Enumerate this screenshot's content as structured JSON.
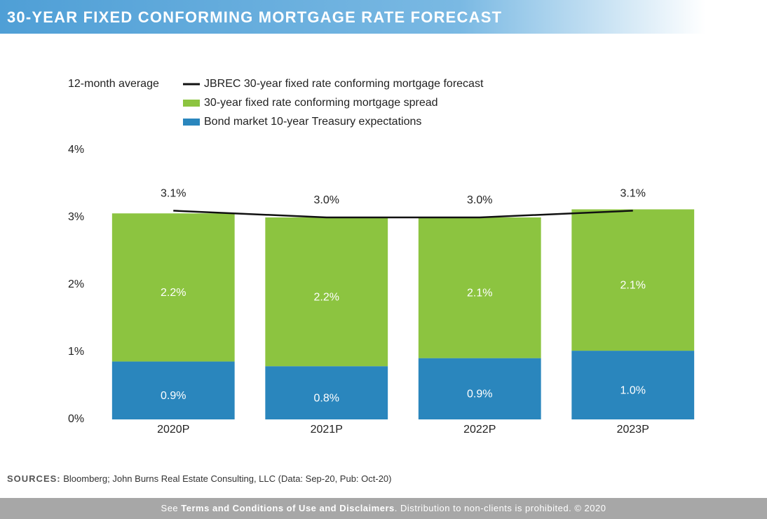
{
  "header": {
    "title": "30-YEAR FIXED CONFORMING MORTGAGE RATE FORECAST"
  },
  "chart_data": {
    "type": "bar",
    "stacked": true,
    "legend_reversed": true,
    "grid": false,
    "legend_title": "12-month average",
    "categories": [
      "2020P",
      "2021P",
      "2022P",
      "2023P"
    ],
    "ylim": [
      0,
      4
    ],
    "yticks": [
      {
        "value": 0,
        "label": "0%"
      },
      {
        "value": 1,
        "label": "1%"
      },
      {
        "value": 2,
        "label": "2%"
      },
      {
        "value": 3,
        "label": "3%"
      },
      {
        "value": 4,
        "label": "4%"
      }
    ],
    "series": [
      {
        "name": "Bond market 10-year Treasury expectations",
        "type": "bar",
        "color": "#2a86bd",
        "values": [
          0.86,
          0.79,
          0.91,
          1.02
        ],
        "value_labels": [
          "0.9%",
          "0.8%",
          "0.9%",
          "1.0%"
        ]
      },
      {
        "name": "30-year fixed rate conforming mortgage spread",
        "type": "bar",
        "color": "#8cc440",
        "values": [
          2.2,
          2.21,
          2.09,
          2.1
        ],
        "value_labels": [
          "2.2%",
          "2.2%",
          "2.1%",
          "2.1%"
        ]
      },
      {
        "name": "JBREC 30-year fixed rate conforming mortgage forecast",
        "type": "line",
        "color": "#111111",
        "values": [
          3.1,
          3.0,
          3.0,
          3.1
        ],
        "value_labels": [
          "3.1%",
          "3.0%",
          "3.0%",
          "3.1%"
        ]
      }
    ]
  },
  "sources": {
    "label": "SOURCES:",
    "text": "Bloomberg; John Burns Real Estate Consulting, LLC (Data: Sep-20, Pub: Oct-20)"
  },
  "footer": {
    "prefix": "See",
    "link": "Terms and Conditions of Use and Disclaimers",
    "suffix": ". Distribution to non-clients is prohibited. © 2020"
  }
}
